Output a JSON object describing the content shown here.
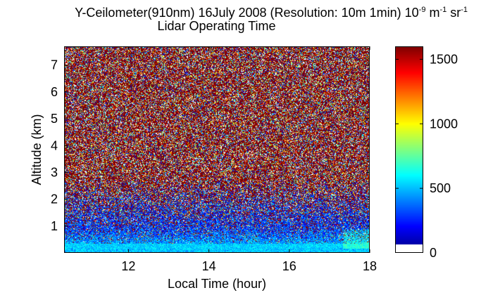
{
  "chart_data": {
    "type": "heatmap",
    "title_parts": [
      "Y-Ceilometer(910nm) 16July 2008 (Resolution: 10m 1min) 10",
      "-9",
      " m",
      "-1",
      " sr",
      "-1"
    ],
    "subtitle": "Lidar Operating Time",
    "xlabel": "Local Time (hour)",
    "ylabel": "Altitude (km)",
    "xlim": [
      10.4,
      18.0
    ],
    "ylim": [
      0.0,
      7.7
    ],
    "xticks": [
      12,
      14,
      16,
      18
    ],
    "yticks": [
      1,
      2,
      3,
      4,
      5,
      6,
      7
    ],
    "colorbar": {
      "range": [
        0,
        1600
      ],
      "ticks": [
        0,
        500,
        1000,
        1500
      ],
      "colormap": "jet"
    }
  }
}
